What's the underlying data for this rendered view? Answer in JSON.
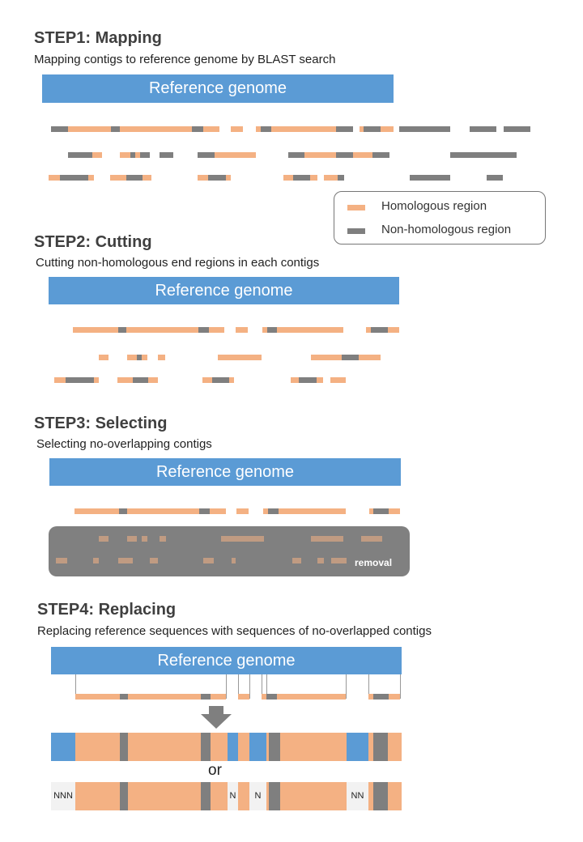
{
  "colors": {
    "homologous": "#f4b183",
    "nonhomologous": "#7f7f7f",
    "reference": "#5b9bd5",
    "removal_box": "#808080",
    "gap_fill": "#f2f2f2"
  },
  "step1": {
    "title": "STEP1: Mapping",
    "subtitle": "Mapping contigs to reference genome by BLAST search",
    "reference_label": "Reference genome"
  },
  "legend": {
    "homologous_label": "Homologous region",
    "nonhomologous_label": "Non-homologous region"
  },
  "step2": {
    "title": "STEP2: Cutting",
    "subtitle": "Cutting  non-homologous end regions in each contigs",
    "reference_label": "Reference genome"
  },
  "step3": {
    "title": "STEP3: Selecting",
    "subtitle": "Selecting no-overlapping contigs",
    "reference_label": "Reference genome",
    "removal_label": "removal"
  },
  "step4": {
    "title": "STEP4: Replacing",
    "subtitle": "Replacing reference sequences with sequences of no-overlapped contigs",
    "reference_label": "Reference genome",
    "or_label": "or",
    "gap_labels": [
      "NNN",
      "N",
      "N",
      "NN"
    ]
  }
}
